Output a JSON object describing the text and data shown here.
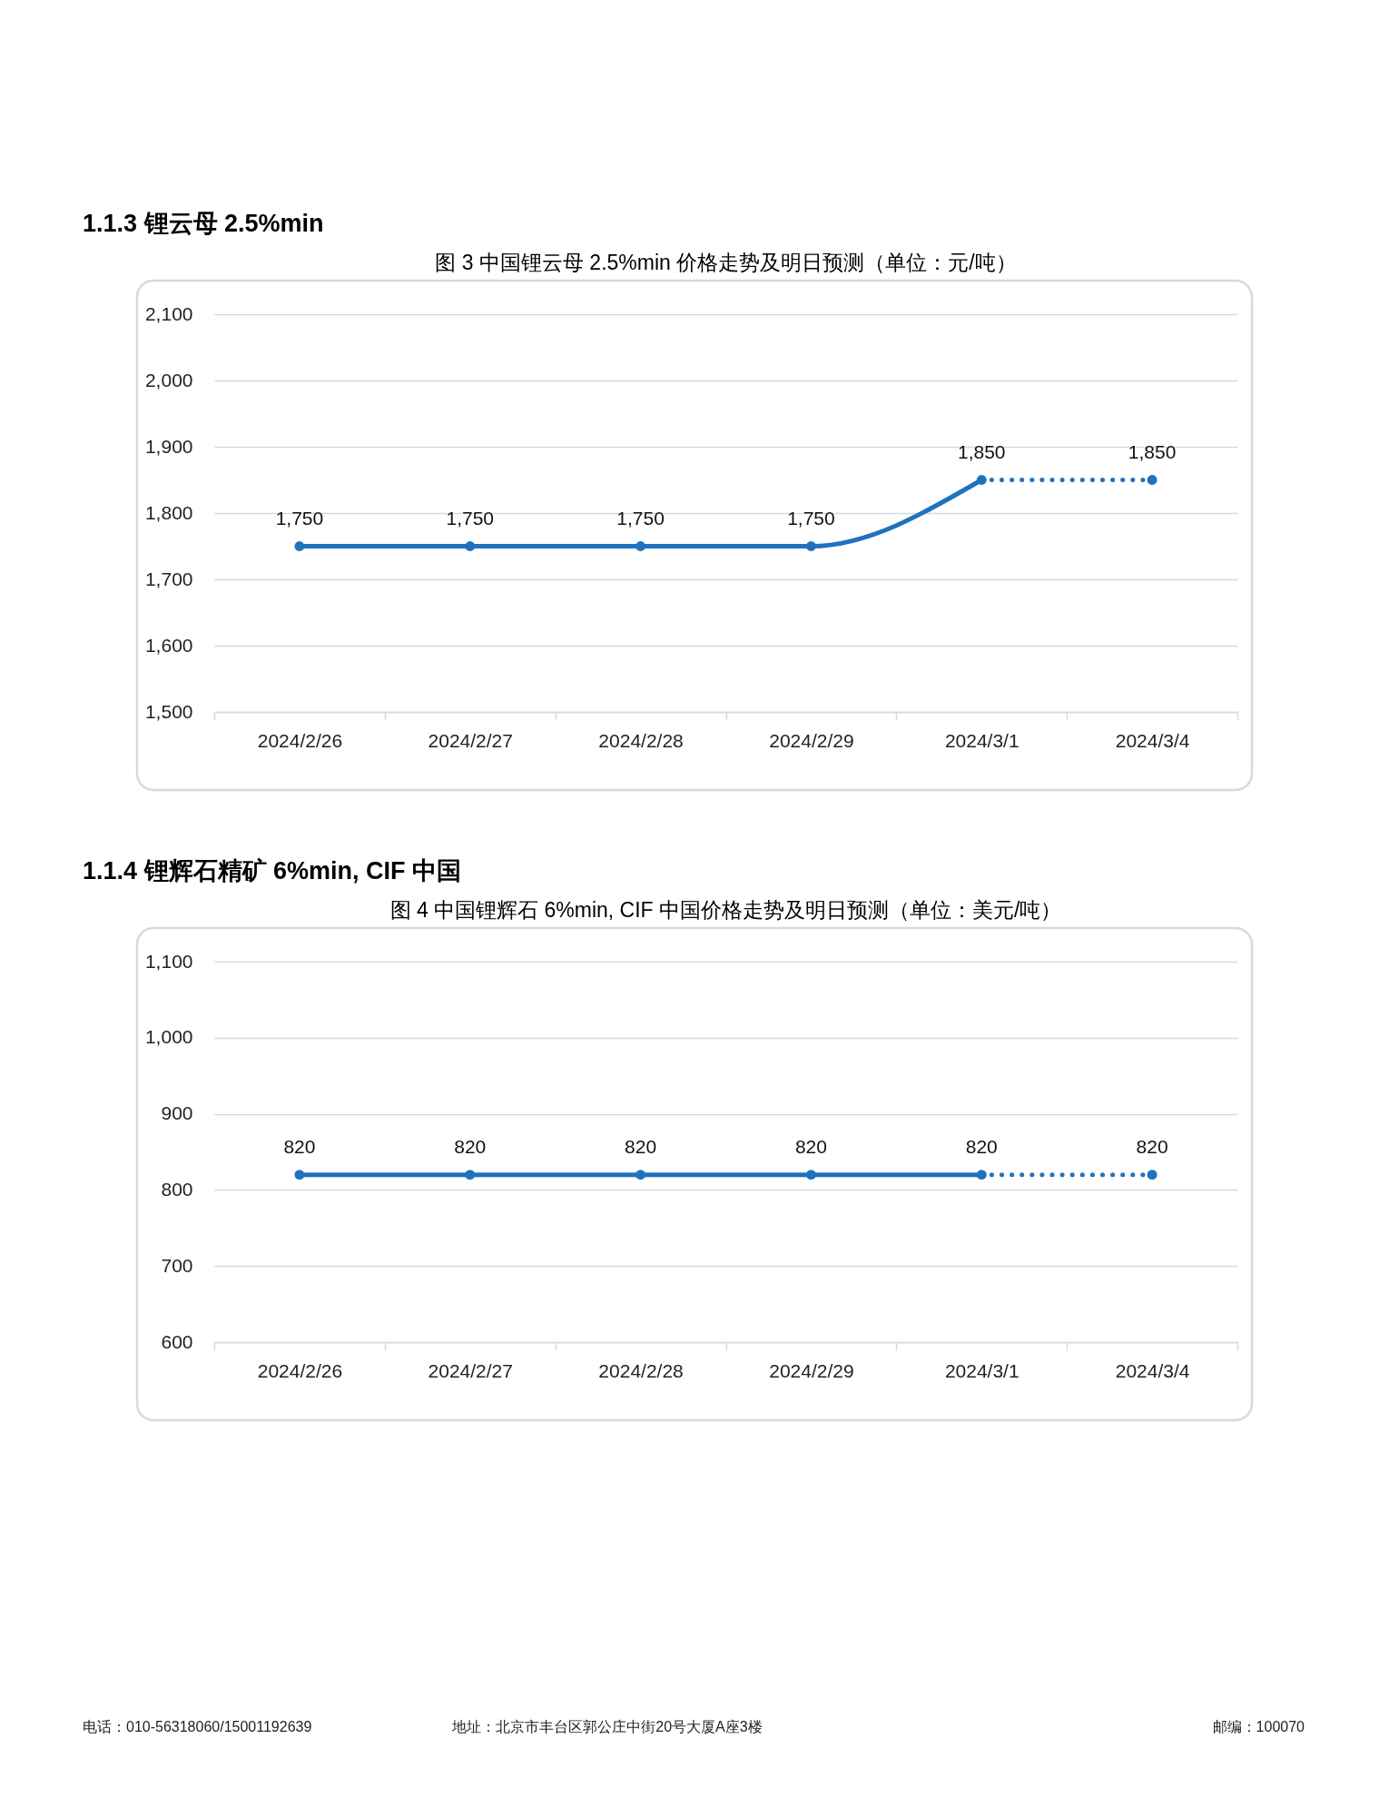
{
  "chart_data": [
    {
      "type": "line",
      "title": "1.1.3 锂云母 2.5%min",
      "subtitle": "图 3 中国锂云母 2.5%min 价格走势及明日预测（单位：元/吨）",
      "categories": [
        "2024/2/26",
        "2024/2/27",
        "2024/2/28",
        "2024/2/29",
        "2024/3/1",
        "2024/3/4"
      ],
      "series": [
        {
          "color": "#1f72bd",
          "line_style": "solid",
          "values": [
            1750,
            1750,
            1750,
            1750,
            1850,
            null
          ],
          "value_labels": [
            "1,750",
            "1,750",
            "1,750",
            "1,750",
            "1,850",
            null
          ]
        },
        {
          "color": "#1f72bd",
          "line_style": "dotted",
          "values": [
            null,
            null,
            null,
            null,
            1850,
            1850
          ],
          "value_labels": [
            null,
            null,
            null,
            null,
            null,
            "1,850"
          ]
        }
      ],
      "ylim": [
        1500,
        2100
      ],
      "yticks": [
        {
          "value": 1500,
          "label": "1,500"
        },
        {
          "value": 1600,
          "label": "1,600"
        },
        {
          "value": 1700,
          "label": "1,700"
        },
        {
          "value": 1800,
          "label": "1,800"
        },
        {
          "value": 1900,
          "label": "1,900"
        },
        {
          "value": 2000,
          "label": "2,000"
        },
        {
          "value": 2100,
          "label": "2,100"
        }
      ],
      "grid": "y",
      "marker": "circle"
    },
    {
      "type": "line",
      "title": "1.1.4 锂辉石精矿 6%min, CIF 中国",
      "subtitle": "图 4 中国锂辉石 6%min, CIF 中国价格走势及明日预测（单位：美元/吨）",
      "categories": [
        "2024/2/26",
        "2024/2/27",
        "2024/2/28",
        "2024/2/29",
        "2024/3/1",
        "2024/3/4"
      ],
      "series": [
        {
          "color": "#1f72bd",
          "line_style": "solid",
          "values": [
            820,
            820,
            820,
            820,
            820,
            null
          ],
          "value_labels": [
            "820",
            "820",
            "820",
            "820",
            "820",
            null
          ]
        },
        {
          "color": "#1f72bd",
          "line_style": "dotted",
          "values": [
            null,
            null,
            null,
            null,
            820,
            820
          ],
          "value_labels": [
            null,
            null,
            null,
            null,
            null,
            "820"
          ]
        }
      ],
      "ylim": [
        600,
        1100
      ],
      "yticks": [
        600,
        700,
        800,
        900,
        {
          "value": 1000,
          "label": "1,000"
        },
        {
          "value": 1100,
          "label": "1,100"
        }
      ],
      "grid": "y",
      "marker": "circle",
      "annotations": [
        "电话：010-56318060/15001192639",
        "地址：北京市丰台区郭公庄中街20号大厦A座3楼",
        "邮编：100070"
      ]
    }
  ]
}
